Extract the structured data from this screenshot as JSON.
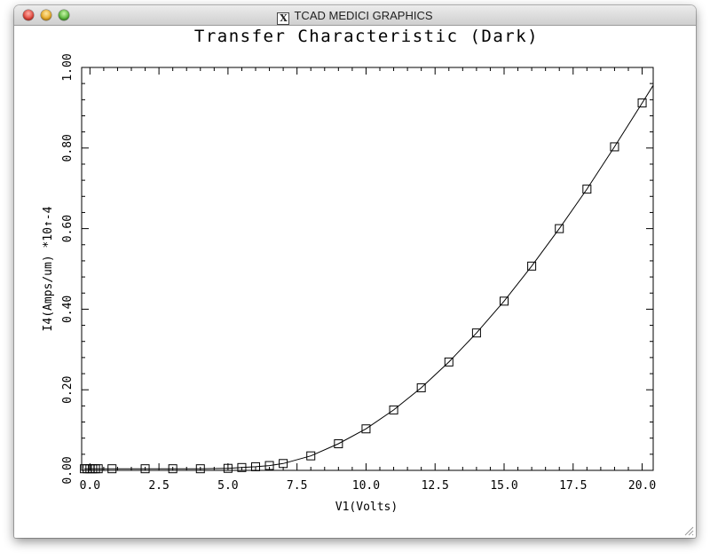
{
  "window": {
    "title": "TCAD MEDICI GRAPHICS",
    "app_icon": "x11-icon"
  },
  "chart_data": {
    "type": "line",
    "title": "Transfer Characteristic (Dark)",
    "xlabel": "V1(Volts)",
    "ylabel": "I4(Amps/um) *10↑-4",
    "xlim": [
      -0.3,
      20.4
    ],
    "ylim": [
      0,
      1.0
    ],
    "x_ticks": [
      "0.0",
      "2.5",
      "5.0",
      "7.5",
      "10.0",
      "12.5",
      "15.0",
      "17.5",
      "20.0"
    ],
    "y_ticks": [
      "0.00",
      "0.20",
      "0.40",
      "0.60",
      "0.80",
      "1.00"
    ],
    "x_tick_values": [
      0,
      2.5,
      5,
      7.5,
      10,
      12.5,
      15,
      17.5,
      20
    ],
    "y_tick_values": [
      0,
      0.2,
      0.4,
      0.6,
      0.8,
      1.0
    ],
    "grid": false,
    "marker": "square",
    "series": [
      {
        "x": [
          -0.2,
          -0.1,
          0.0,
          0.1,
          0.2,
          0.3,
          0.8,
          2.0,
          3.0,
          4.0,
          5.0,
          5.5,
          6.0,
          6.5,
          7.0,
          8.0,
          9.0,
          10.0,
          11.0,
          12.0,
          13.0,
          14.0,
          15.0,
          16.0,
          17.0,
          18.0,
          19.0,
          20.0
        ],
        "y": [
          0.004,
          0.004,
          0.004,
          0.004,
          0.004,
          0.004,
          0.004,
          0.004,
          0.004,
          0.004,
          0.005,
          0.007,
          0.009,
          0.012,
          0.017,
          0.036,
          0.066,
          0.103,
          0.15,
          0.205,
          0.269,
          0.341,
          0.42,
          0.507,
          0.6,
          0.698,
          0.803,
          0.912
        ]
      }
    ]
  }
}
